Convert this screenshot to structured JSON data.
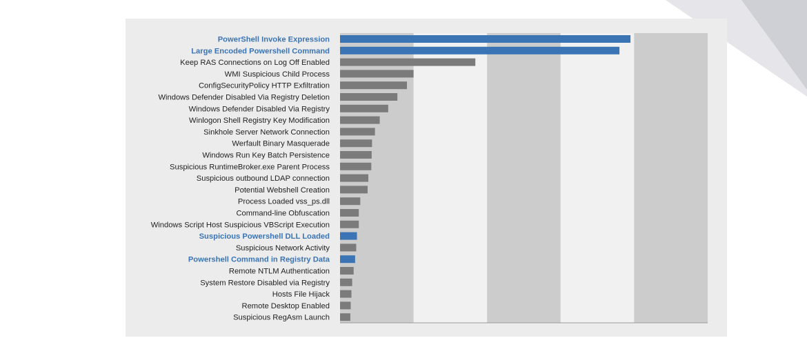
{
  "chart_data": {
    "type": "bar",
    "orientation": "horizontal",
    "title": "",
    "xlabel": "",
    "ylabel": "",
    "xlim": [
      0,
      100
    ],
    "grid": "alternating vertical bands",
    "legend": "none",
    "colors": {
      "highlight": "#3a74b4",
      "normal": "#7b7b7b",
      "band": "#cccccc",
      "text_normal": "#222222"
    },
    "categories": [
      "PowerShell Invoke Expression",
      "Large Encoded Powershell Command",
      "Keep RAS Connections on Log Off Enabled",
      "WMI Suspicious Child Process",
      "ConfigSecurityPolicy HTTP Exfiltration",
      "Windows Defender Disabled Via Registry Deletion",
      "Windows Defender Disabled Via Registry",
      "Winlogon Shell Registry Key Modification",
      "Sinkhole Server Network Connection",
      "Werfault Binary Masquerade",
      "Windows Run Key Batch Persistence",
      "Suspicious RuntimeBroker.exe Parent Process",
      "Suspicious outbound LDAP connection",
      "Potential Webshell Creation",
      "Process Loaded vss_ps.dll",
      "Command-line Obfuscation",
      "Windows Script Host Suspicious VBScript Execution",
      "Suspicious Powershell DLL Loaded",
      "Suspicious Network Activity",
      "Powershell Command in Registry Data",
      "Remote NTLM Authentication",
      "System Restore Disabled via Registry",
      "Hosts File Hijack",
      "Remote Desktop Enabled",
      "Suspicious RegAsm Launch"
    ],
    "values": [
      79,
      76,
      36.8,
      20,
      18.2,
      15.6,
      13.1,
      10.8,
      9.5,
      8.7,
      8.6,
      8.5,
      7.7,
      7.5,
      5.5,
      5.1,
      5.1,
      4.6,
      4.4,
      4.1,
      3.7,
      3.3,
      3.1,
      2.9,
      2.8
    ],
    "highlighted": [
      true,
      true,
      false,
      false,
      false,
      false,
      false,
      false,
      false,
      false,
      false,
      false,
      false,
      false,
      false,
      false,
      false,
      true,
      false,
      true,
      false,
      false,
      false,
      false,
      false
    ]
  }
}
